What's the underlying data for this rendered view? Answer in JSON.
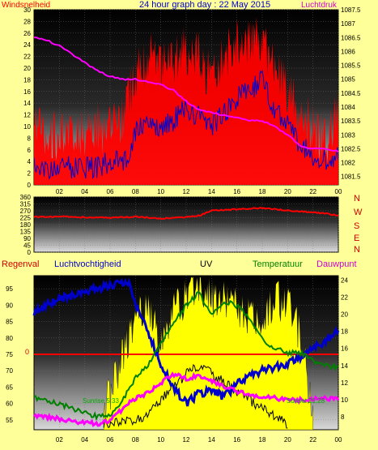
{
  "header": {
    "left_label": "Windsnelheid",
    "title": "24 hour graph day : 22 May 2015",
    "right_label": "Luchtdruk"
  },
  "colors": {
    "background": "#ffff99",
    "wind": "#ff0000",
    "gust_avg": "#0000cc",
    "pressure": "#ff00ff",
    "winddir": "#ff0000",
    "humidity": "#0000cc",
    "uv": "#ffff00",
    "temperature": "#008000",
    "dewpoint": "#ff00ff",
    "rain": "#ff0000",
    "solar": "#000000"
  },
  "compass": [
    "N",
    "W",
    "S",
    "E",
    "N"
  ],
  "lower_labels": {
    "regenval": "Regenval",
    "luchtvochtigheid": "Luchtvochtigheid",
    "uv": "UV",
    "temperatuur": "Temperatuur",
    "dauwpunt": "Dauwpunt",
    "rain_zero": "0",
    "sunrise": "Sunrise 5:33",
    "sunset": "Sunset 21:28"
  },
  "chart_data": [
    {
      "type": "line",
      "title": "24 hour graph day : 22 May 2015",
      "x_ticks": [
        "02",
        "04",
        "06",
        "08",
        "10",
        "12",
        "14",
        "16",
        "18",
        "20",
        "22",
        "00"
      ],
      "left_axis": {
        "label": "Windsnelheid",
        "ticks": [
          0,
          2,
          4,
          6,
          8,
          10,
          12,
          14,
          16,
          18,
          20,
          22,
          24,
          26,
          28,
          30
        ],
        "ylim": [
          0,
          30
        ]
      },
      "right_axis": {
        "label": "Luchtdruk",
        "ticks": [
          1081.5,
          1082,
          1082.5,
          1083,
          1083.5,
          1084,
          1084.5,
          1085,
          1085.5,
          1086,
          1086.5,
          1087,
          1087.5
        ],
        "ylim": [
          1081.2,
          1087.5
        ]
      },
      "series": [
        {
          "name": "Windsnelheid",
          "axis": "left",
          "x": [
            0,
            1,
            2,
            3,
            4,
            5,
            6,
            7,
            7.5,
            8,
            9,
            10,
            11,
            12,
            13,
            14,
            15,
            16,
            17,
            18,
            19,
            20,
            21,
            22,
            23,
            24
          ],
          "values": [
            10,
            9,
            8,
            8,
            9,
            10,
            9,
            11,
            16,
            19,
            22,
            20,
            21,
            23,
            22,
            18,
            22,
            25,
            24,
            25,
            20,
            16,
            12,
            10,
            7,
            12
          ]
        },
        {
          "name": "Gemiddelde wind",
          "axis": "left",
          "x": [
            0,
            1,
            2,
            3,
            4,
            5,
            6,
            7,
            7.5,
            8,
            9,
            10,
            11,
            12,
            13,
            14,
            15,
            16,
            17,
            18,
            19,
            20,
            21,
            22,
            23,
            24
          ],
          "values": [
            4,
            3,
            3,
            3,
            3,
            3,
            4,
            4,
            5,
            9,
            11,
            10,
            11,
            13,
            12,
            10,
            12,
            15,
            16,
            18,
            13,
            10,
            7,
            5,
            4,
            5
          ]
        },
        {
          "name": "Luchtdruk",
          "axis": "right",
          "x": [
            0,
            1,
            2,
            3,
            4,
            5,
            6,
            7,
            8,
            9,
            10,
            11,
            12,
            13,
            14,
            15,
            16,
            17,
            18,
            19,
            20,
            21,
            22,
            23,
            24
          ],
          "values": [
            1086.5,
            1086.4,
            1086.2,
            1085.9,
            1085.6,
            1085.3,
            1085.1,
            1085.0,
            1085.0,
            1084.9,
            1084.8,
            1084.6,
            1084.2,
            1083.9,
            1083.8,
            1083.7,
            1083.6,
            1083.5,
            1083.5,
            1083.3,
            1083.0,
            1082.6,
            1082.5,
            1082.5,
            1082.4
          ]
        }
      ]
    },
    {
      "type": "line",
      "x_ticks": [
        "02",
        "04",
        "06",
        "08",
        "10",
        "12",
        "14",
        "16",
        "18",
        "20",
        "22",
        "00"
      ],
      "left_axis": {
        "ticks": [
          0,
          45,
          90,
          135,
          180,
          225,
          270,
          315,
          360
        ],
        "ylim": [
          0,
          360
        ]
      },
      "series": [
        {
          "name": "Windrichting",
          "x": [
            0,
            2,
            4,
            6,
            8,
            10,
            12,
            13,
            14,
            16,
            18,
            20,
            22,
            24
          ],
          "values": [
            230,
            232,
            228,
            225,
            232,
            220,
            230,
            238,
            270,
            280,
            288,
            272,
            262,
            240
          ]
        }
      ]
    },
    {
      "type": "line",
      "x_ticks": [
        "02",
        "04",
        "06",
        "08",
        "10",
        "12",
        "14",
        "16",
        "18",
        "20",
        "22",
        "00"
      ],
      "left_axis": {
        "label": "Luchtvochtigheid",
        "ticks": [
          55,
          60,
          65,
          70,
          75,
          80,
          85,
          90,
          95
        ],
        "ylim": [
          52,
          99
        ]
      },
      "right_axis": {
        "label": "Temperatuur",
        "ticks": [
          8,
          10,
          12,
          14,
          16,
          18,
          20,
          22,
          24
        ],
        "ylim": [
          6.5,
          24.5
        ]
      },
      "series": [
        {
          "name": "Luchtvochtigheid",
          "axis": "left",
          "x": [
            0,
            1,
            2,
            3,
            4,
            5,
            6,
            7,
            7.5,
            8,
            9,
            10,
            11,
            12,
            13,
            14,
            15,
            16,
            17,
            18,
            19,
            20,
            21,
            22,
            23,
            24
          ],
          "values": [
            88,
            90,
            92,
            93,
            94,
            95,
            96,
            97,
            96,
            90,
            82,
            72,
            65,
            60,
            63,
            64,
            62,
            66,
            68,
            70,
            71,
            72,
            74,
            77,
            79,
            82
          ]
        },
        {
          "name": "Temperatuur",
          "axis": "right",
          "x": [
            0,
            1,
            2,
            3,
            4,
            5,
            6,
            7,
            8,
            9,
            10,
            11,
            12,
            13,
            14,
            15,
            16,
            17,
            18,
            19,
            20,
            21,
            22,
            23,
            24
          ],
          "values": [
            10.2,
            10.0,
            9.5,
            9.0,
            8.5,
            8.0,
            8.2,
            10.0,
            12.5,
            14.0,
            16.5,
            19.0,
            21.0,
            22.5,
            20.0,
            21.5,
            21.0,
            19.5,
            17.0,
            16.0,
            15.5,
            15.5,
            14.5,
            14.0,
            13.8
          ]
        },
        {
          "name": "Dauwpunt",
          "axis": "right",
          "x": [
            0,
            1,
            2,
            3,
            4,
            5,
            6,
            7,
            8,
            9,
            10,
            11,
            12,
            13,
            14,
            15,
            16,
            17,
            18,
            19,
            20,
            21,
            22,
            23,
            24
          ],
          "values": [
            8.0,
            8.0,
            7.8,
            7.5,
            7.3,
            7.2,
            7.5,
            9.0,
            10.2,
            10.8,
            12.0,
            13.0,
            12.5,
            12.8,
            12.2,
            11.5,
            11.0,
            10.5,
            10.3,
            10.2,
            10.0,
            10.0,
            10.1,
            10.2,
            10.0
          ]
        },
        {
          "name": "UV",
          "axis": "right",
          "x": [
            5.5,
            6,
            7,
            8,
            9,
            10,
            11,
            12,
            13,
            14,
            15,
            16,
            17,
            18,
            19,
            20,
            21,
            22
          ],
          "values": [
            9,
            11,
            15,
            20,
            22,
            16,
            21,
            22,
            24,
            22,
            22,
            21,
            20,
            20,
            22,
            21,
            18,
            8
          ]
        },
        {
          "name": "Regenval",
          "axis": "left",
          "x": [
            0,
            24
          ],
          "values": [
            75,
            75
          ]
        }
      ]
    }
  ]
}
